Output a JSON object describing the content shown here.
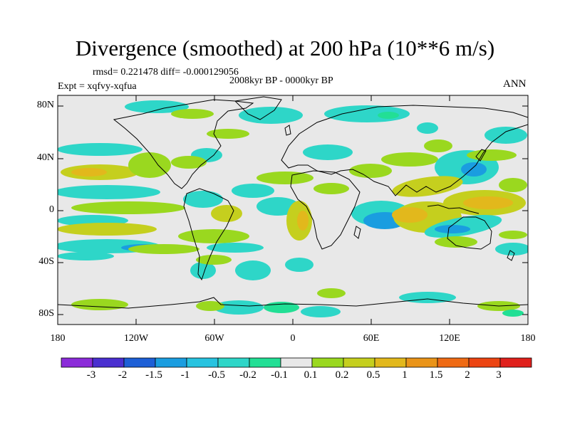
{
  "title": "Divergence (smoothed) at 200 hPa (10**6 m/s)",
  "stats": "rmsd= 0.221478 diff= -0.000129056",
  "period": "2008kyr BP - 0000kyr BP",
  "experiment": "Expt = xqfvy-xqfua",
  "season": "ANN",
  "y_axis": {
    "ticks": [
      "80N",
      "40N",
      "0",
      "40S",
      "80S"
    ]
  },
  "x_axis": {
    "ticks": [
      "180",
      "120W",
      "60W",
      "0",
      "60E",
      "120E",
      "180"
    ]
  },
  "colorbar": {
    "labels": [
      "-3",
      "-2",
      "-1.5",
      "-1",
      "-0.5",
      "-0.2",
      "-0.1",
      "0.1",
      "0.2",
      "0.5",
      "1",
      "1.5",
      "2",
      "3"
    ],
    "colors": [
      "#8b2bd9",
      "#4a2fd0",
      "#1d5fd6",
      "#1a9de0",
      "#27c3e0",
      "#2ed6c8",
      "#22df95",
      "#e8e8e8",
      "#9ad81f",
      "#c5cf1e",
      "#e2b81c",
      "#ea9418",
      "#ef6a14",
      "#ec4412",
      "#e0201c"
    ]
  },
  "map_colors": {
    "background": "#e8e8e8",
    "neg_weak": "#22df95",
    "neg_mid": "#2ed6c8",
    "neg_strong": "#1a9de0",
    "pos_weak": "#9ad81f",
    "pos_mid": "#c5cf1e",
    "pos_strong": "#e2b81c"
  }
}
